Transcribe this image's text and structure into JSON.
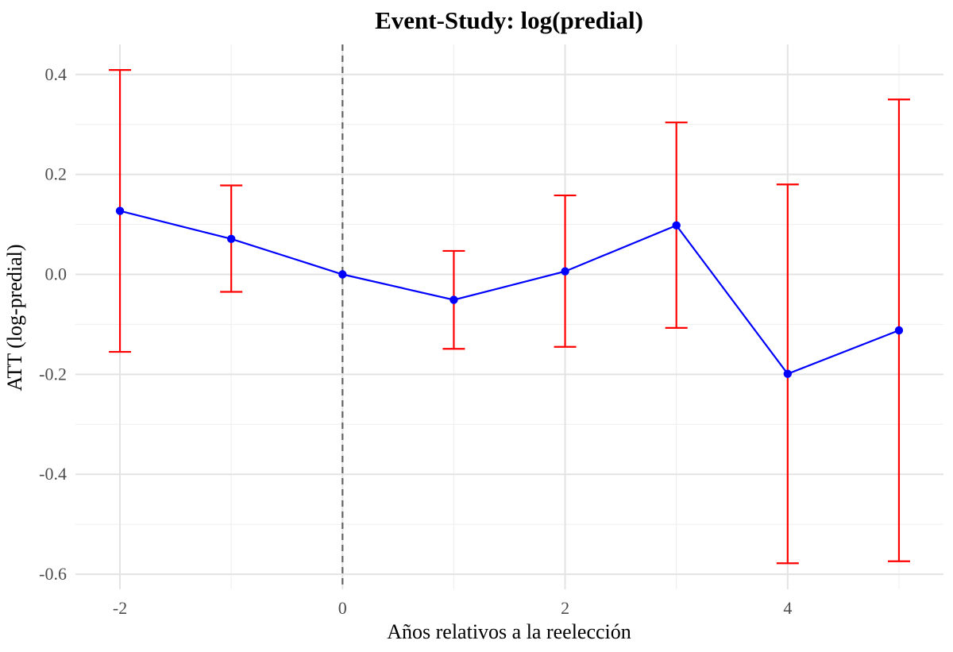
{
  "chart_data": {
    "type": "line",
    "title": "Event-Study: log(predial)",
    "xlabel": "Años relativos a la reelección",
    "ylabel": "ATT (log-predial)",
    "xlim": [
      -2.4,
      5.4
    ],
    "ylim": [
      -0.63,
      0.46
    ],
    "x_ticks": [
      -2,
      0,
      2,
      4
    ],
    "x_tick_labels": [
      "-2",
      "0",
      "2",
      "4"
    ],
    "y_ticks": [
      0.4,
      0.2,
      0.0,
      -0.2,
      -0.4,
      -0.6
    ],
    "y_tick_labels": [
      "0.4",
      "0.2",
      "0.0",
      "-0.2",
      "-0.4",
      "-0.6"
    ],
    "reference_line_x": 0,
    "grid": true,
    "series": [
      {
        "x": [
          -2,
          -1,
          0,
          1,
          2,
          3,
          4,
          5
        ],
        "values": [
          0.127,
          0.071,
          0.0,
          -0.051,
          0.006,
          0.098,
          -0.199,
          -0.112
        ],
        "ci_lower": [
          -0.155,
          -0.035,
          0.0,
          -0.149,
          -0.145,
          -0.107,
          -0.578,
          -0.574
        ],
        "ci_upper": [
          0.409,
          0.178,
          0.0,
          0.047,
          0.158,
          0.304,
          0.18,
          0.35
        ]
      }
    ],
    "colors": {
      "line": "#0000ff",
      "point": "#0000ff",
      "errorbar": "#ff0000",
      "reference_line": "#666666"
    }
  }
}
